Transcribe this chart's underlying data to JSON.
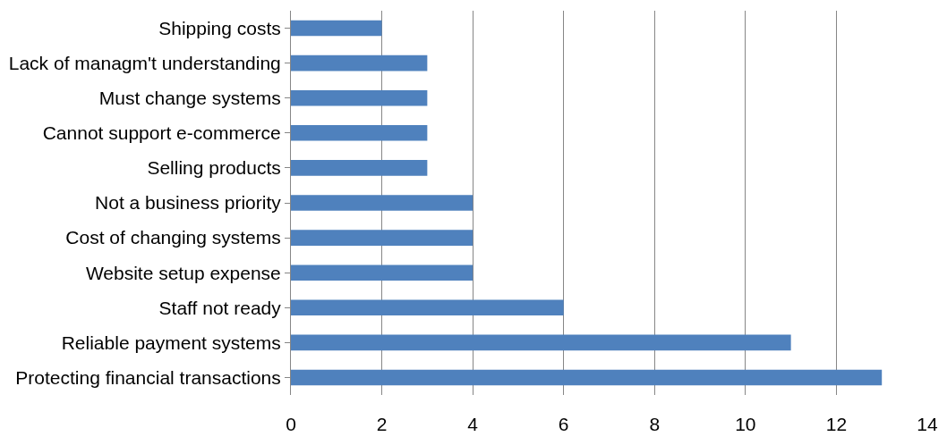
{
  "chart_data": {
    "type": "bar",
    "orientation": "horizontal",
    "categories": [
      "Shipping costs",
      "Lack of managm't understanding",
      "Must change systems",
      "Cannot support e-commerce",
      "Selling products",
      "Not a business priority",
      "Cost of changing systems",
      "Website setup expense",
      "Staff not ready",
      "Reliable payment systems",
      "Protecting financial transactions"
    ],
    "values": [
      2,
      3,
      3,
      3,
      3,
      4,
      4,
      4,
      6,
      11,
      13
    ],
    "color": "#4f81bd",
    "xlim": [
      0,
      14
    ],
    "xticks": [
      0,
      2,
      4,
      6,
      8,
      10,
      12,
      14
    ],
    "grid": "x"
  }
}
